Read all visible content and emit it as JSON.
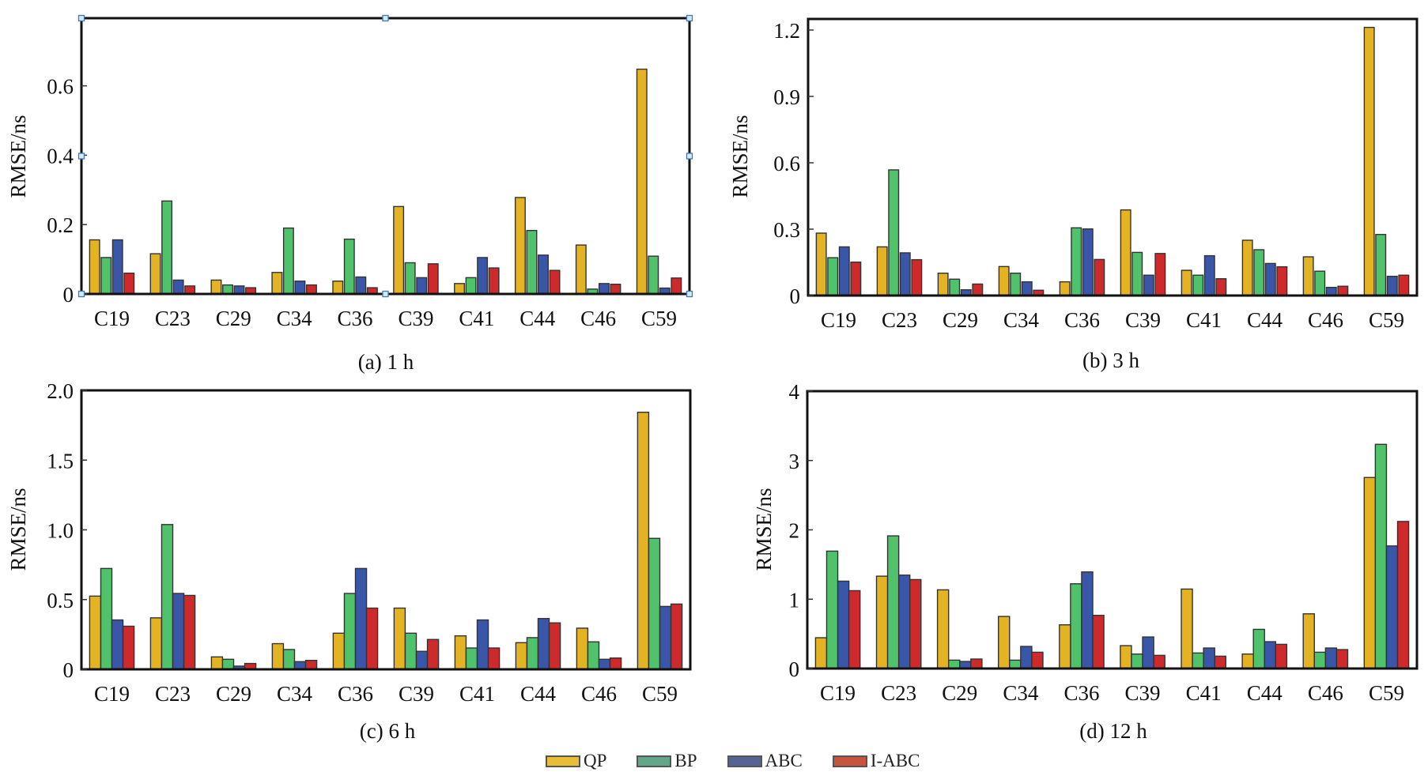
{
  "chart_data": [
    {
      "type": "bar",
      "id": "a",
      "title": "(a) 1 h",
      "xlabel": "",
      "ylabel": "RMSE/ns",
      "ylim": [
        0,
        0.795
      ],
      "yticks": [
        0,
        0.2,
        0.4,
        0.6
      ],
      "ytick_labels": [
        "0",
        "0.2",
        "0.4",
        "0.6"
      ],
      "grid": false,
      "categories": [
        "C19",
        "C23",
        "C29",
        "C34",
        "C36",
        "C39",
        "C41",
        "C44",
        "C46",
        "C59"
      ],
      "series": [
        {
          "name": "QP",
          "values": [
            0.156,
            0.116,
            0.04,
            0.062,
            0.037,
            0.252,
            0.03,
            0.278,
            0.141,
            0.648
          ]
        },
        {
          "name": "BP",
          "values": [
            0.105,
            0.268,
            0.026,
            0.19,
            0.158,
            0.09,
            0.047,
            0.183,
            0.014,
            0.109
          ]
        },
        {
          "name": "ABC",
          "values": [
            0.156,
            0.04,
            0.023,
            0.037,
            0.049,
            0.047,
            0.105,
            0.112,
            0.03,
            0.017
          ]
        },
        {
          "name": "I-ABC",
          "values": [
            0.06,
            0.023,
            0.018,
            0.026,
            0.018,
            0.087,
            0.075,
            0.068,
            0.028,
            0.046
          ]
        }
      ]
    },
    {
      "type": "bar",
      "id": "b",
      "title": "(b) 3 h",
      "xlabel": "",
      "ylabel": "RMSE/ns",
      "ylim": [
        0,
        1.25
      ],
      "yticks": [
        0,
        0.3,
        0.6,
        0.9,
        1.2
      ],
      "ytick_labels": [
        "0",
        "0.3",
        "0.6",
        "0.9",
        "1.2"
      ],
      "grid": false,
      "categories": [
        "C19",
        "C23",
        "C29",
        "C34",
        "C36",
        "C39",
        "C41",
        "C44",
        "C46",
        "C59"
      ],
      "series": [
        {
          "name": "QP",
          "values": [
            0.282,
            0.22,
            0.101,
            0.131,
            0.062,
            0.387,
            0.114,
            0.25,
            0.175,
            1.212
          ]
        },
        {
          "name": "BP",
          "values": [
            0.171,
            0.568,
            0.074,
            0.101,
            0.306,
            0.195,
            0.092,
            0.207,
            0.11,
            0.276
          ]
        },
        {
          "name": "ABC",
          "values": [
            0.22,
            0.193,
            0.026,
            0.062,
            0.301,
            0.092,
            0.18,
            0.145,
            0.037,
            0.087
          ]
        },
        {
          "name": "I-ABC",
          "values": [
            0.151,
            0.162,
            0.052,
            0.024,
            0.163,
            0.19,
            0.076,
            0.13,
            0.042,
            0.092
          ]
        }
      ]
    },
    {
      "type": "bar",
      "id": "c",
      "title": "(c) 6 h",
      "xlabel": "",
      "ylabel": "RMSE/ns",
      "ylim": [
        0,
        2.0
      ],
      "yticks": [
        0,
        0.5,
        1.0,
        1.5,
        2.0
      ],
      "ytick_labels": [
        "0",
        "0.5",
        "1.0",
        "1.5",
        "2.0"
      ],
      "grid": false,
      "categories": [
        "C19",
        "C23",
        "C29",
        "C34",
        "C36",
        "C39",
        "C41",
        "C44",
        "C46",
        "C59"
      ],
      "series": [
        {
          "name": "QP",
          "values": [
            0.525,
            0.369,
            0.089,
            0.184,
            0.259,
            0.439,
            0.24,
            0.191,
            0.295,
            1.843
          ]
        },
        {
          "name": "BP",
          "values": [
            0.723,
            1.038,
            0.072,
            0.142,
            0.544,
            0.259,
            0.153,
            0.227,
            0.197,
            0.939
          ]
        },
        {
          "name": "ABC",
          "values": [
            0.354,
            0.544,
            0.023,
            0.055,
            0.723,
            0.129,
            0.354,
            0.364,
            0.072,
            0.451
          ]
        },
        {
          "name": "I-ABC",
          "values": [
            0.309,
            0.53,
            0.042,
            0.064,
            0.439,
            0.214,
            0.153,
            0.333,
            0.081,
            0.468
          ]
        }
      ]
    },
    {
      "type": "bar",
      "id": "d",
      "title": "(d) 12 h",
      "xlabel": "",
      "ylabel": "RMSE/ns",
      "ylim": [
        0,
        4
      ],
      "yticks": [
        0,
        1,
        2,
        3,
        4
      ],
      "ytick_labels": [
        "0",
        "1",
        "2",
        "3",
        "4"
      ],
      "grid": false,
      "categories": [
        "C19",
        "C23",
        "C29",
        "C34",
        "C36",
        "C39",
        "C41",
        "C44",
        "C46",
        "C59"
      ],
      "series": [
        {
          "name": "QP",
          "values": [
            0.444,
            1.332,
            1.135,
            0.751,
            0.63,
            0.33,
            1.146,
            0.209,
            0.789,
            2.755
          ]
        },
        {
          "name": "BP",
          "values": [
            1.693,
            1.913,
            0.121,
            0.121,
            1.222,
            0.209,
            0.224,
            0.565,
            0.235,
            3.233
          ]
        },
        {
          "name": "ABC",
          "values": [
            1.26,
            1.347,
            0.102,
            0.319,
            1.393,
            0.455,
            0.296,
            0.387,
            0.296,
            1.768
          ]
        },
        {
          "name": "I-ABC",
          "values": [
            1.123,
            1.283,
            0.137,
            0.235,
            0.767,
            0.19,
            0.178,
            0.349,
            0.273,
            2.121
          ]
        }
      ]
    }
  ],
  "series_colors": {
    "QP": "#E3B324",
    "BP": "#4FC26B",
    "ABC": "#3A56A8",
    "I-ABC": "#CE2A2C"
  },
  "legend": {
    "placement": "bottom-center",
    "items": [
      {
        "label": "QP",
        "color": "#E8BE38"
      },
      {
        "label": "BP",
        "color": "#63A68A"
      },
      {
        "label": "ABC",
        "color": "#566494"
      },
      {
        "label": "I-ABC",
        "color": "#C8533F"
      }
    ]
  }
}
